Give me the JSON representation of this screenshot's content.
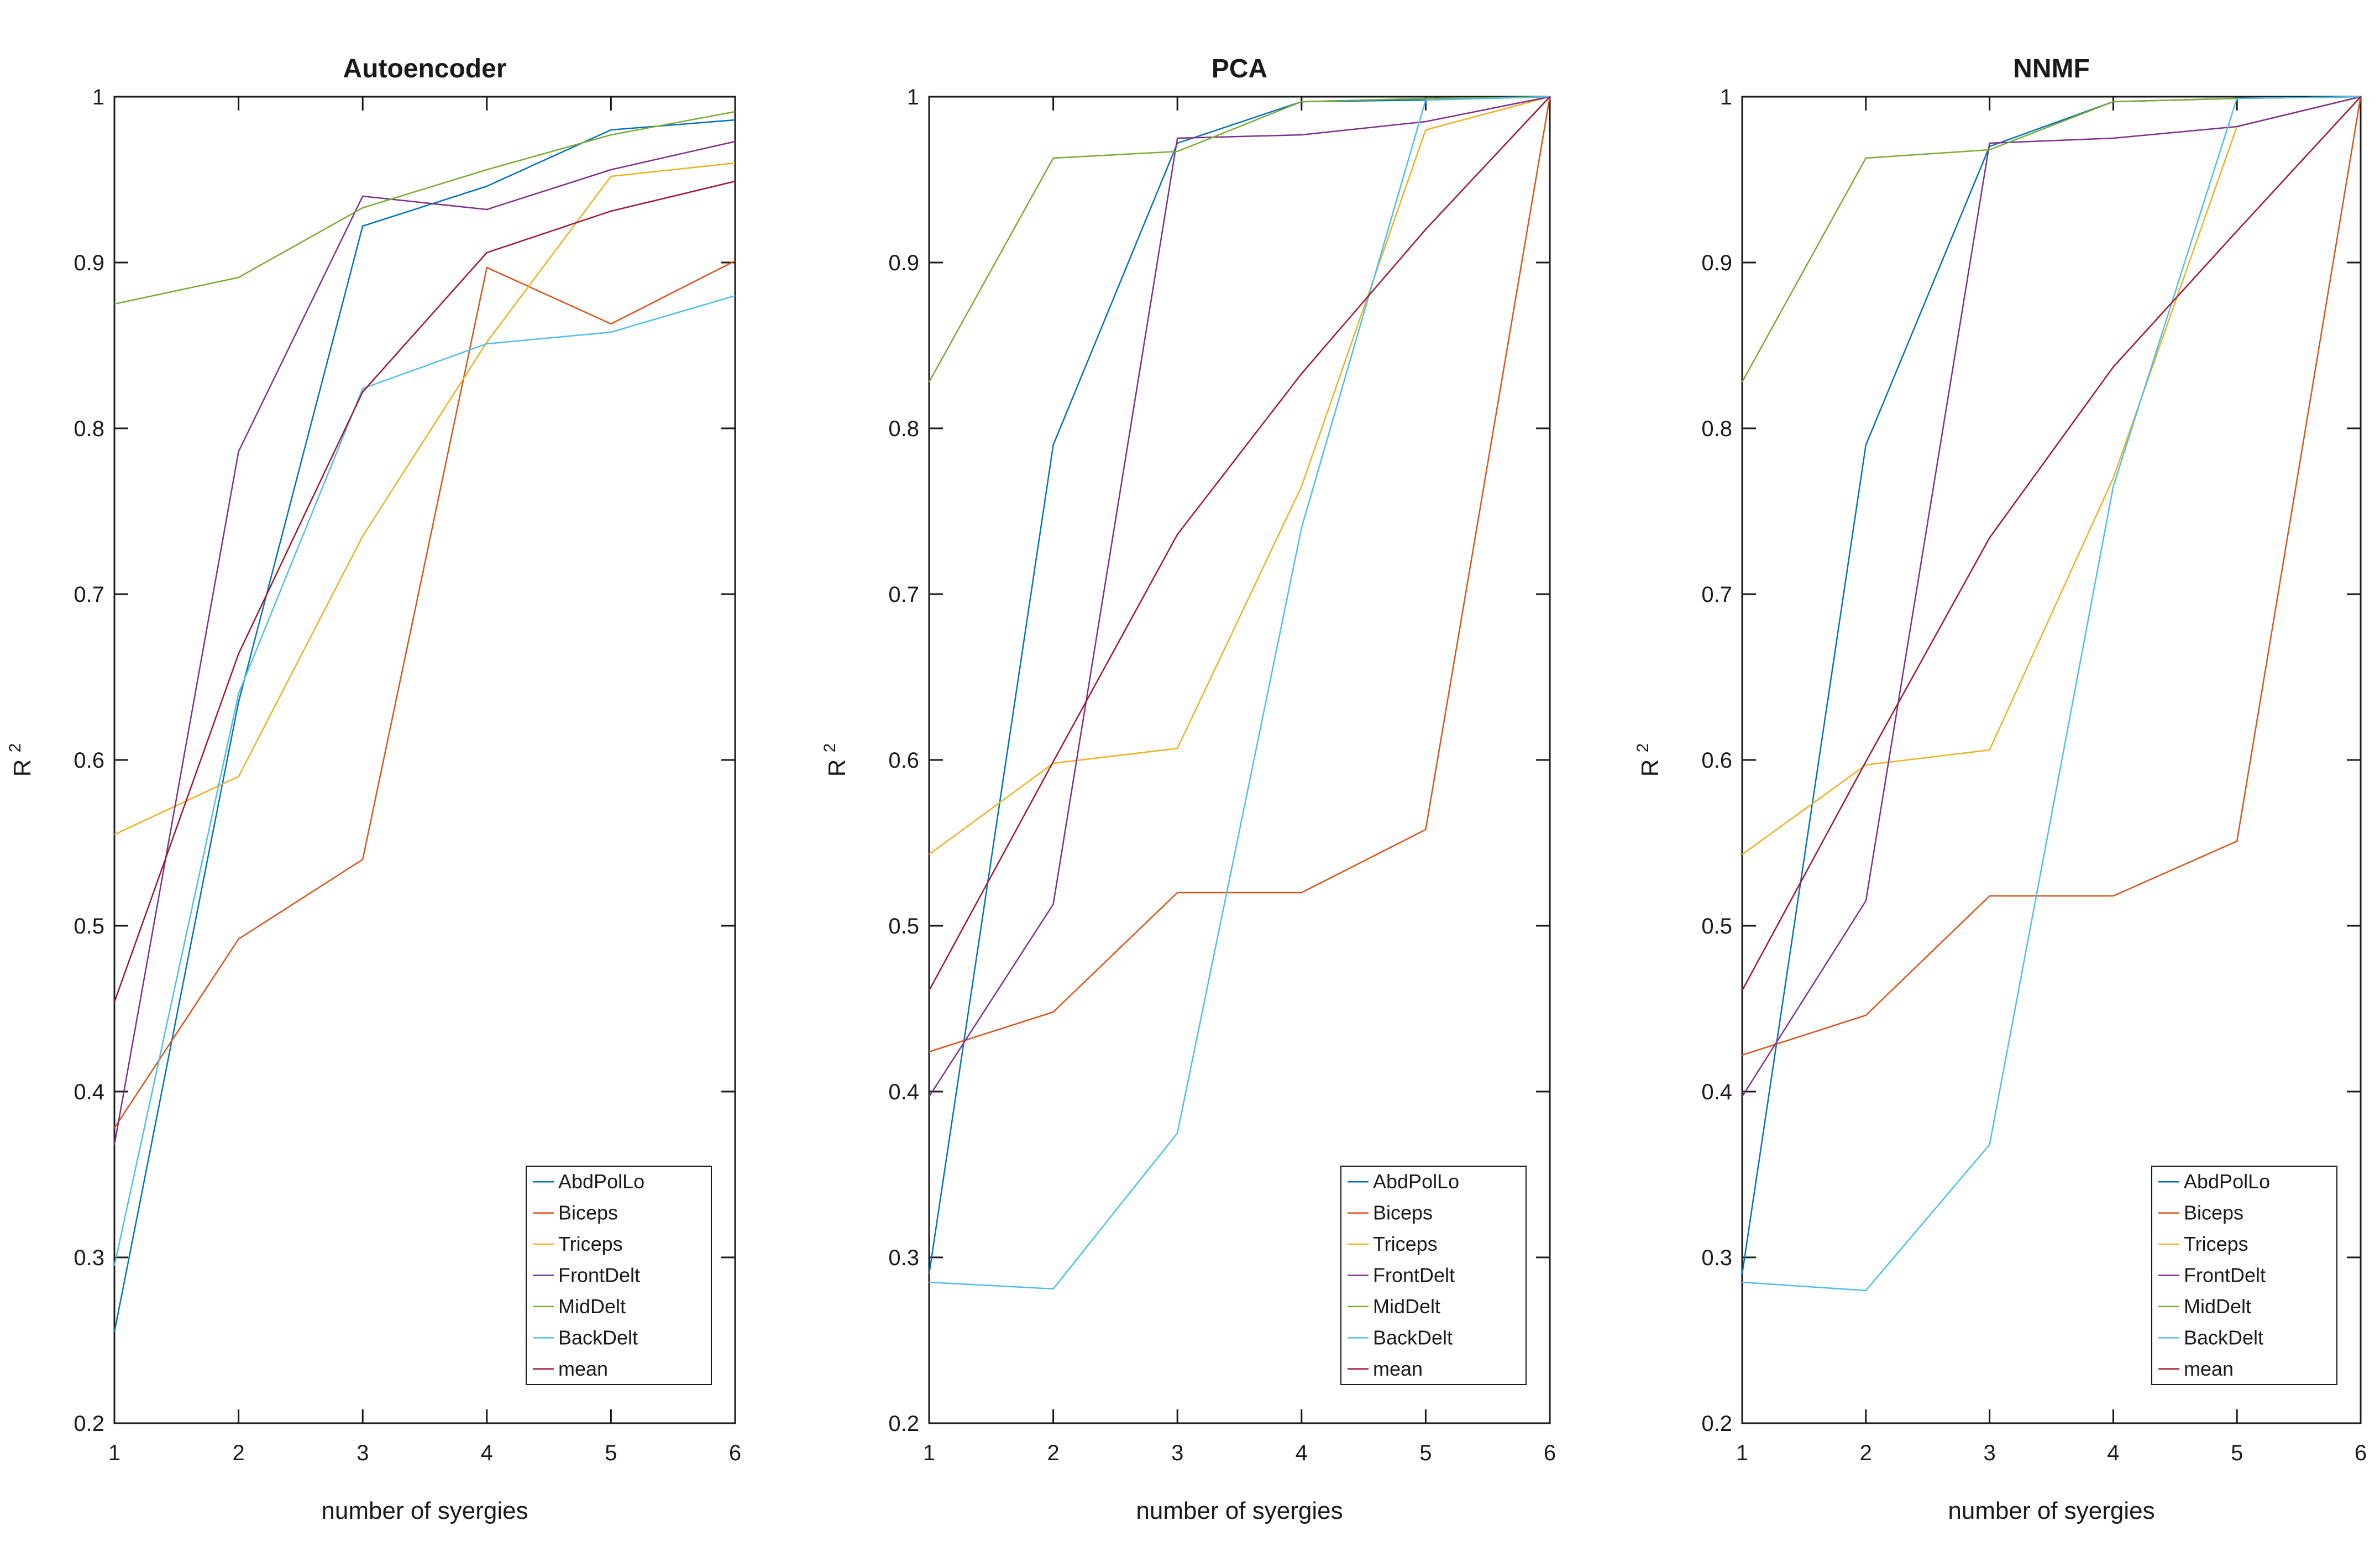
{
  "figure": {
    "background": "#ffffff",
    "axis_color": "#1a1a1a",
    "ylabel_base": "R",
    "ylabel_superscript": "2"
  },
  "chart_data": [
    {
      "type": "line",
      "title": "Autoencoder",
      "xlabel": "number of syergies",
      "ylabel": "R^2",
      "x": [
        1,
        2,
        3,
        4,
        5,
        6
      ],
      "x_tick_labels": [
        "1",
        "2",
        "3",
        "4",
        "5",
        "6"
      ],
      "ylim": [
        0.2,
        1.0
      ],
      "yticks": [
        0.2,
        0.3,
        0.4,
        0.5,
        0.6,
        0.7,
        0.8,
        0.9,
        1.0
      ],
      "ytick_labels": [
        "0.2",
        "0.3",
        "0.4",
        "0.5",
        "0.6",
        "0.7",
        "0.8",
        "0.9",
        "1"
      ],
      "grid": false,
      "legend_position": "inside-bottom-right",
      "series": [
        {
          "name": "AbdPolLo",
          "color": "#0072BD",
          "values": [
            0.255,
            0.635,
            0.922,
            0.946,
            0.98,
            0.986
          ]
        },
        {
          "name": "Biceps",
          "color": "#D95319",
          "values": [
            0.378,
            0.492,
            0.54,
            0.897,
            0.863,
            0.901
          ]
        },
        {
          "name": "Triceps",
          "color": "#EDB120",
          "values": [
            0.555,
            0.59,
            0.735,
            0.852,
            0.952,
            0.96
          ]
        },
        {
          "name": "FrontDelt",
          "color": "#7E2F8E",
          "values": [
            0.368,
            0.786,
            0.94,
            0.932,
            0.956,
            0.973
          ]
        },
        {
          "name": "MidDelt",
          "color": "#77AC30",
          "values": [
            0.875,
            0.891,
            0.933,
            0.956,
            0.977,
            0.991
          ]
        },
        {
          "name": "BackDelt",
          "color": "#4DBEEE",
          "values": [
            0.295,
            0.64,
            0.824,
            0.851,
            0.858,
            0.88
          ]
        },
        {
          "name": "mean",
          "color": "#A2142F",
          "values": [
            0.454,
            0.664,
            0.822,
            0.906,
            0.931,
            0.949
          ]
        }
      ]
    },
    {
      "type": "line",
      "title": "PCA",
      "xlabel": "number of syergies",
      "ylabel": "R^2",
      "x": [
        1,
        2,
        3,
        4,
        5,
        6
      ],
      "x_tick_labels": [
        "1",
        "2",
        "3",
        "4",
        "5",
        "6"
      ],
      "ylim": [
        0.2,
        1.0
      ],
      "yticks": [
        0.2,
        0.3,
        0.4,
        0.5,
        0.6,
        0.7,
        0.8,
        0.9,
        1.0
      ],
      "ytick_labels": [
        "0.2",
        "0.3",
        "0.4",
        "0.5",
        "0.6",
        "0.7",
        "0.8",
        "0.9",
        "1"
      ],
      "grid": false,
      "legend_position": "inside-bottom-right",
      "series": [
        {
          "name": "AbdPolLo",
          "color": "#0072BD",
          "values": [
            0.29,
            0.79,
            0.972,
            0.997,
            0.998,
            1.0
          ]
        },
        {
          "name": "Biceps",
          "color": "#D95319",
          "values": [
            0.424,
            0.448,
            0.52,
            0.52,
            0.558,
            1.0
          ]
        },
        {
          "name": "Triceps",
          "color": "#EDB120",
          "values": [
            0.543,
            0.598,
            0.607,
            0.765,
            0.98,
            1.0
          ]
        },
        {
          "name": "FrontDelt",
          "color": "#7E2F8E",
          "values": [
            0.397,
            0.513,
            0.975,
            0.977,
            0.985,
            1.0
          ]
        },
        {
          "name": "MidDelt",
          "color": "#77AC30",
          "values": [
            0.828,
            0.963,
            0.967,
            0.997,
            0.999,
            1.0
          ]
        },
        {
          "name": "BackDelt",
          "color": "#4DBEEE",
          "values": [
            0.285,
            0.281,
            0.375,
            0.74,
            0.998,
            1.0
          ]
        },
        {
          "name": "mean",
          "color": "#A2142F",
          "values": [
            0.461,
            0.599,
            0.736,
            0.833,
            0.92,
            1.0
          ]
        }
      ]
    },
    {
      "type": "line",
      "title": "NNMF",
      "xlabel": "number of syergies",
      "ylabel": "R^2",
      "x": [
        1,
        2,
        3,
        4,
        5,
        6
      ],
      "x_tick_labels": [
        "1",
        "2",
        "3",
        "4",
        "5",
        "6"
      ],
      "ylim": [
        0.2,
        1.0
      ],
      "yticks": [
        0.2,
        0.3,
        0.4,
        0.5,
        0.6,
        0.7,
        0.8,
        0.9,
        1.0
      ],
      "ytick_labels": [
        "0.2",
        "0.3",
        "0.4",
        "0.5",
        "0.6",
        "0.7",
        "0.8",
        "0.9",
        "1"
      ],
      "grid": false,
      "legend_position": "inside-bottom-right",
      "series": [
        {
          "name": "AbdPolLo",
          "color": "#0072BD",
          "values": [
            0.29,
            0.79,
            0.97,
            0.997,
            0.999,
            1.0
          ]
        },
        {
          "name": "Biceps",
          "color": "#D95319",
          "values": [
            0.422,
            0.446,
            0.518,
            0.518,
            0.551,
            1.0
          ]
        },
        {
          "name": "Triceps",
          "color": "#EDB120",
          "values": [
            0.543,
            0.597,
            0.606,
            0.77,
            0.982,
            1.0
          ]
        },
        {
          "name": "FrontDelt",
          "color": "#7E2F8E",
          "values": [
            0.397,
            0.515,
            0.972,
            0.975,
            0.982,
            1.0
          ]
        },
        {
          "name": "MidDelt",
          "color": "#77AC30",
          "values": [
            0.828,
            0.963,
            0.968,
            0.997,
            0.999,
            1.0
          ]
        },
        {
          "name": "BackDelt",
          "color": "#4DBEEE",
          "values": [
            0.285,
            0.28,
            0.368,
            0.765,
            0.999,
            1.0
          ]
        },
        {
          "name": "mean",
          "color": "#A2142F",
          "values": [
            0.461,
            0.599,
            0.734,
            0.837,
            0.919,
            1.0
          ]
        }
      ]
    }
  ]
}
